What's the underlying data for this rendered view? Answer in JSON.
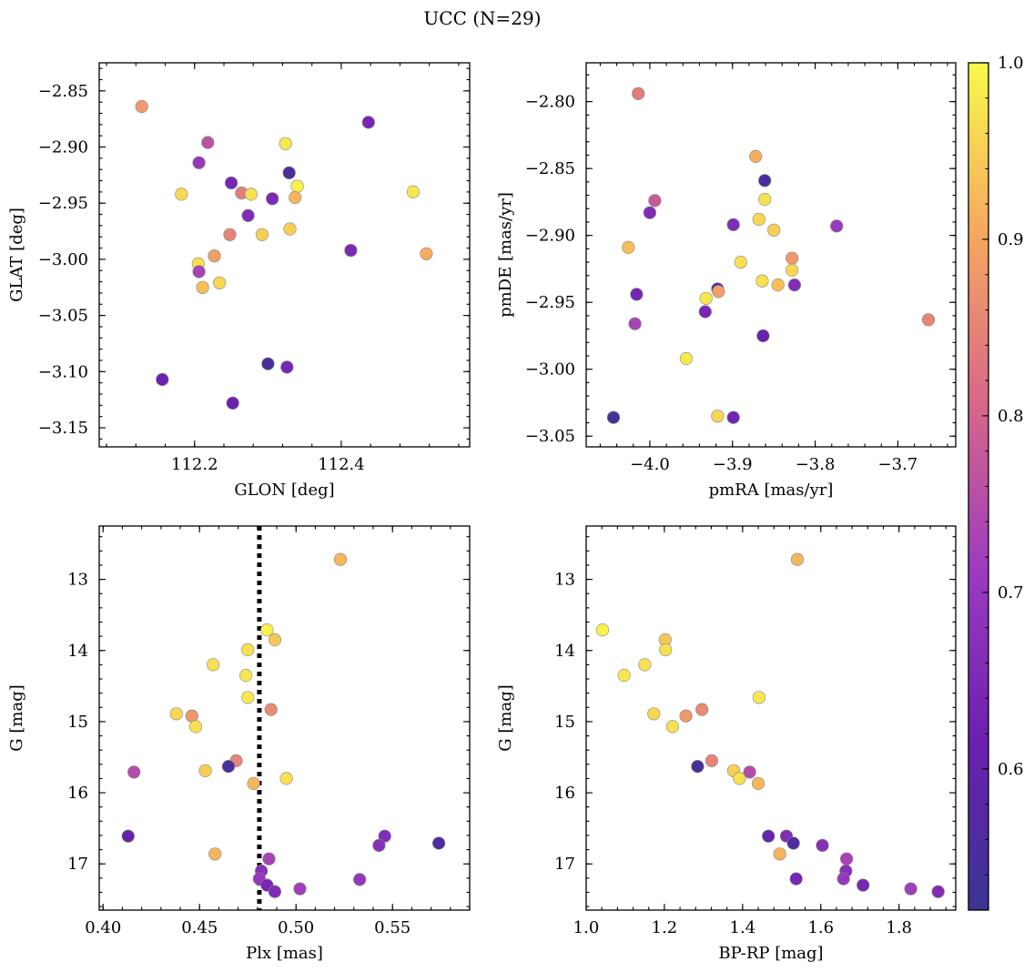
{
  "title": "UCC (N=29)",
  "colormap": "plasma",
  "colorbar": {
    "min": 0.52,
    "max": 1.0,
    "ticks": [
      0.6,
      0.7,
      0.8,
      0.9,
      1.0
    ],
    "tick_labels": [
      "0.6",
      "0.7",
      "0.8",
      "0.9",
      "1.0"
    ]
  },
  "chart_data": [
    {
      "type": "scatter",
      "xlabel": "GLON [deg]",
      "ylabel": "GLAT [deg]",
      "xlim": [
        112.07,
        112.575
      ],
      "ylim": [
        -3.167,
        -2.825
      ],
      "xticks": [
        112.2,
        112.4
      ],
      "xtick_labels": [
        "112.2",
        "112.4"
      ],
      "yticks": [
        -3.15,
        -3.1,
        -3.05,
        -3.0,
        -2.95,
        -2.9,
        -2.85
      ],
      "ytick_labels": [
        "−3.15",
        "−3.10",
        "−3.05",
        "−3.00",
        "−2.95",
        "−2.90",
        "−2.85"
      ],
      "points": [
        {
          "x": 112.128,
          "y": -2.864,
          "c": 0.88
        },
        {
          "x": 112.218,
          "y": -2.896,
          "c": 0.76
        },
        {
          "x": 112.206,
          "y": -2.914,
          "c": 0.7
        },
        {
          "x": 112.182,
          "y": -2.942,
          "c": 0.96
        },
        {
          "x": 112.25,
          "y": -2.932,
          "c": 0.64
        },
        {
          "x": 112.264,
          "y": -2.941,
          "c": 0.84
        },
        {
          "x": 112.277,
          "y": -2.942,
          "c": 0.97
        },
        {
          "x": 112.273,
          "y": -2.961,
          "c": 0.66
        },
        {
          "x": 112.248,
          "y": -2.978,
          "c": 0.85
        },
        {
          "x": 112.227,
          "y": -2.997,
          "c": 0.89
        },
        {
          "x": 112.205,
          "y": -3.004,
          "c": 0.97
        },
        {
          "x": 112.206,
          "y": -3.011,
          "c": 0.73
        },
        {
          "x": 112.211,
          "y": -3.025,
          "c": 0.93
        },
        {
          "x": 112.234,
          "y": -3.021,
          "c": 0.96
        },
        {
          "x": 112.292,
          "y": -2.978,
          "c": 0.95
        },
        {
          "x": 112.306,
          "y": -2.946,
          "c": 0.65
        },
        {
          "x": 112.324,
          "y": -2.897,
          "c": 0.98
        },
        {
          "x": 112.329,
          "y": -2.923,
          "c": 0.55
        },
        {
          "x": 112.34,
          "y": -2.935,
          "c": 0.99
        },
        {
          "x": 112.337,
          "y": -2.945,
          "c": 0.92
        },
        {
          "x": 112.33,
          "y": -2.973,
          "c": 0.95
        },
        {
          "x": 112.437,
          "y": -2.878,
          "c": 0.64
        },
        {
          "x": 112.413,
          "y": -2.992,
          "c": 0.65
        },
        {
          "x": 112.498,
          "y": -2.94,
          "c": 0.98
        },
        {
          "x": 112.516,
          "y": -2.995,
          "c": 0.91
        },
        {
          "x": 112.156,
          "y": -3.107,
          "c": 0.62
        },
        {
          "x": 112.3,
          "y": -3.093,
          "c": 0.55
        },
        {
          "x": 112.326,
          "y": -3.096,
          "c": 0.64
        },
        {
          "x": 112.252,
          "y": -3.128,
          "c": 0.62
        }
      ]
    },
    {
      "type": "scatter",
      "xlabel": "pmRA [mas/yr]",
      "ylabel": "pmDE [mas/yr]",
      "xlim": [
        -4.077,
        -3.63
      ],
      "ylim": [
        -3.058,
        -2.771
      ],
      "xticks": [
        -4.0,
        -3.9,
        -3.8,
        -3.7
      ],
      "xtick_labels": [
        "−4.0",
        "−3.9",
        "−3.8",
        "−3.7"
      ],
      "yticks": [
        -3.05,
        -3.0,
        -2.95,
        -2.9,
        -2.85,
        -2.8
      ],
      "ytick_labels": [
        "−3.05",
        "−3.00",
        "−2.95",
        "−2.90",
        "−2.85",
        "−2.80"
      ],
      "points": [
        {
          "x": -4.014,
          "y": -2.794,
          "c": 0.84
        },
        {
          "x": -3.872,
          "y": -2.841,
          "c": 0.91
        },
        {
          "x": -3.861,
          "y": -2.859,
          "c": 0.55
        },
        {
          "x": -3.861,
          "y": -2.873,
          "c": 0.97
        },
        {
          "x": -3.994,
          "y": -2.874,
          "c": 0.78
        },
        {
          "x": -4.0,
          "y": -2.883,
          "c": 0.66
        },
        {
          "x": -3.868,
          "y": -2.888,
          "c": 0.96
        },
        {
          "x": -3.899,
          "y": -2.892,
          "c": 0.66
        },
        {
          "x": -3.85,
          "y": -2.896,
          "c": 0.95
        },
        {
          "x": -3.774,
          "y": -2.893,
          "c": 0.71
        },
        {
          "x": -4.026,
          "y": -2.909,
          "c": 0.93
        },
        {
          "x": -3.828,
          "y": -2.917,
          "c": 0.88
        },
        {
          "x": -3.89,
          "y": -2.92,
          "c": 0.97
        },
        {
          "x": -3.828,
          "y": -2.926,
          "c": 0.96
        },
        {
          "x": -3.864,
          "y": -2.934,
          "c": 0.97
        },
        {
          "x": -3.845,
          "y": -2.937,
          "c": 0.93
        },
        {
          "x": -3.825,
          "y": -2.937,
          "c": 0.66
        },
        {
          "x": -3.918,
          "y": -2.94,
          "c": 0.57
        },
        {
          "x": -3.917,
          "y": -2.942,
          "c": 0.89
        },
        {
          "x": -3.932,
          "y": -2.947,
          "c": 0.98
        },
        {
          "x": -4.016,
          "y": -2.944,
          "c": 0.64
        },
        {
          "x": -3.933,
          "y": -2.957,
          "c": 0.64
        },
        {
          "x": -4.018,
          "y": -2.966,
          "c": 0.73
        },
        {
          "x": -3.663,
          "y": -2.963,
          "c": 0.85
        },
        {
          "x": -3.863,
          "y": -2.975,
          "c": 0.61
        },
        {
          "x": -3.956,
          "y": -2.992,
          "c": 0.98
        },
        {
          "x": -4.044,
          "y": -3.036,
          "c": 0.54
        },
        {
          "x": -3.918,
          "y": -3.035,
          "c": 0.96
        },
        {
          "x": -3.899,
          "y": -3.036,
          "c": 0.63
        }
      ]
    },
    {
      "type": "scatter",
      "xlabel": "Plx [mas]",
      "ylabel": "G [mag]",
      "xlim": [
        0.398,
        0.59
      ],
      "ylim": [
        17.65,
        12.25
      ],
      "y_inverted": true,
      "xticks": [
        0.4,
        0.45,
        0.5,
        0.55
      ],
      "xtick_labels": [
        "0.40",
        "0.45",
        "0.50",
        "0.55"
      ],
      "yticks": [
        13,
        14,
        15,
        16,
        17
      ],
      "ytick_labels": [
        "13",
        "14",
        "15",
        "16",
        "17"
      ],
      "vline": {
        "x": 0.481,
        "style": "dotted",
        "color": "#000000"
      },
      "points": [
        {
          "x": 0.523,
          "y": 12.72,
          "c": 0.92
        },
        {
          "x": 0.485,
          "y": 13.71,
          "c": 0.99
        },
        {
          "x": 0.489,
          "y": 13.85,
          "c": 0.94
        },
        {
          "x": 0.475,
          "y": 13.99,
          "c": 0.97
        },
        {
          "x": 0.457,
          "y": 14.2,
          "c": 0.97
        },
        {
          "x": 0.474,
          "y": 14.35,
          "c": 0.98
        },
        {
          "x": 0.475,
          "y": 14.66,
          "c": 0.98
        },
        {
          "x": 0.487,
          "y": 14.83,
          "c": 0.86
        },
        {
          "x": 0.438,
          "y": 14.89,
          "c": 0.96
        },
        {
          "x": 0.446,
          "y": 14.92,
          "c": 0.88
        },
        {
          "x": 0.448,
          "y": 15.07,
          "c": 0.97
        },
        {
          "x": 0.469,
          "y": 15.55,
          "c": 0.85
        },
        {
          "x": 0.465,
          "y": 15.63,
          "c": 0.55
        },
        {
          "x": 0.453,
          "y": 15.69,
          "c": 0.95
        },
        {
          "x": 0.416,
          "y": 15.71,
          "c": 0.75
        },
        {
          "x": 0.495,
          "y": 15.8,
          "c": 0.97
        },
        {
          "x": 0.478,
          "y": 15.87,
          "c": 0.92
        },
        {
          "x": 0.413,
          "y": 16.61,
          "c": 0.6
        },
        {
          "x": 0.574,
          "y": 16.71,
          "c": 0.56
        },
        {
          "x": 0.546,
          "y": 16.61,
          "c": 0.66
        },
        {
          "x": 0.543,
          "y": 16.74,
          "c": 0.67
        },
        {
          "x": 0.458,
          "y": 16.86,
          "c": 0.92
        },
        {
          "x": 0.486,
          "y": 16.93,
          "c": 0.73
        },
        {
          "x": 0.482,
          "y": 17.1,
          "c": 0.67
        },
        {
          "x": 0.481,
          "y": 17.21,
          "c": 0.7
        },
        {
          "x": 0.485,
          "y": 17.3,
          "c": 0.64
        },
        {
          "x": 0.489,
          "y": 17.39,
          "c": 0.66
        },
        {
          "x": 0.502,
          "y": 17.35,
          "c": 0.72
        },
        {
          "x": 0.533,
          "y": 17.22,
          "c": 0.7
        }
      ]
    },
    {
      "type": "scatter",
      "xlabel": "BP-RP [mag]",
      "ylabel": "G [mag]",
      "xlim": [
        1.0,
        1.945
      ],
      "ylim": [
        17.65,
        12.25
      ],
      "y_inverted": true,
      "xticks": [
        1.0,
        1.2,
        1.4,
        1.6,
        1.8
      ],
      "xtick_labels": [
        "1.0",
        "1.2",
        "1.4",
        "1.6",
        "1.8"
      ],
      "yticks": [
        13,
        14,
        15,
        16,
        17
      ],
      "ytick_labels": [
        "13",
        "14",
        "15",
        "16",
        "17"
      ],
      "points": [
        {
          "x": 1.54,
          "y": 12.72,
          "c": 0.92
        },
        {
          "x": 1.042,
          "y": 13.71,
          "c": 0.99
        },
        {
          "x": 1.202,
          "y": 13.85,
          "c": 0.94
        },
        {
          "x": 1.203,
          "y": 13.99,
          "c": 0.97
        },
        {
          "x": 1.097,
          "y": 14.35,
          "c": 0.98
        },
        {
          "x": 1.15,
          "y": 14.2,
          "c": 0.97
        },
        {
          "x": 1.442,
          "y": 14.66,
          "c": 0.98
        },
        {
          "x": 1.296,
          "y": 14.83,
          "c": 0.86
        },
        {
          "x": 1.173,
          "y": 14.89,
          "c": 0.96
        },
        {
          "x": 1.255,
          "y": 14.92,
          "c": 0.88
        },
        {
          "x": 1.221,
          "y": 15.07,
          "c": 0.97
        },
        {
          "x": 1.321,
          "y": 15.55,
          "c": 0.85
        },
        {
          "x": 1.285,
          "y": 15.63,
          "c": 0.55
        },
        {
          "x": 1.377,
          "y": 15.69,
          "c": 0.95
        },
        {
          "x": 1.418,
          "y": 15.71,
          "c": 0.75
        },
        {
          "x": 1.392,
          "y": 15.8,
          "c": 0.97
        },
        {
          "x": 1.44,
          "y": 15.87,
          "c": 0.92
        },
        {
          "x": 1.466,
          "y": 16.61,
          "c": 0.6
        },
        {
          "x": 1.512,
          "y": 16.61,
          "c": 0.66
        },
        {
          "x": 1.53,
          "y": 16.71,
          "c": 0.56
        },
        {
          "x": 1.604,
          "y": 16.74,
          "c": 0.67
        },
        {
          "x": 1.495,
          "y": 16.86,
          "c": 0.92
        },
        {
          "x": 1.666,
          "y": 16.93,
          "c": 0.73
        },
        {
          "x": 1.664,
          "y": 17.1,
          "c": 0.67
        },
        {
          "x": 1.658,
          "y": 17.21,
          "c": 0.7
        },
        {
          "x": 1.537,
          "y": 17.21,
          "c": 0.64
        },
        {
          "x": 1.708,
          "y": 17.3,
          "c": 0.64
        },
        {
          "x": 1.83,
          "y": 17.35,
          "c": 0.72
        },
        {
          "x": 1.9,
          "y": 17.39,
          "c": 0.66
        }
      ]
    }
  ]
}
